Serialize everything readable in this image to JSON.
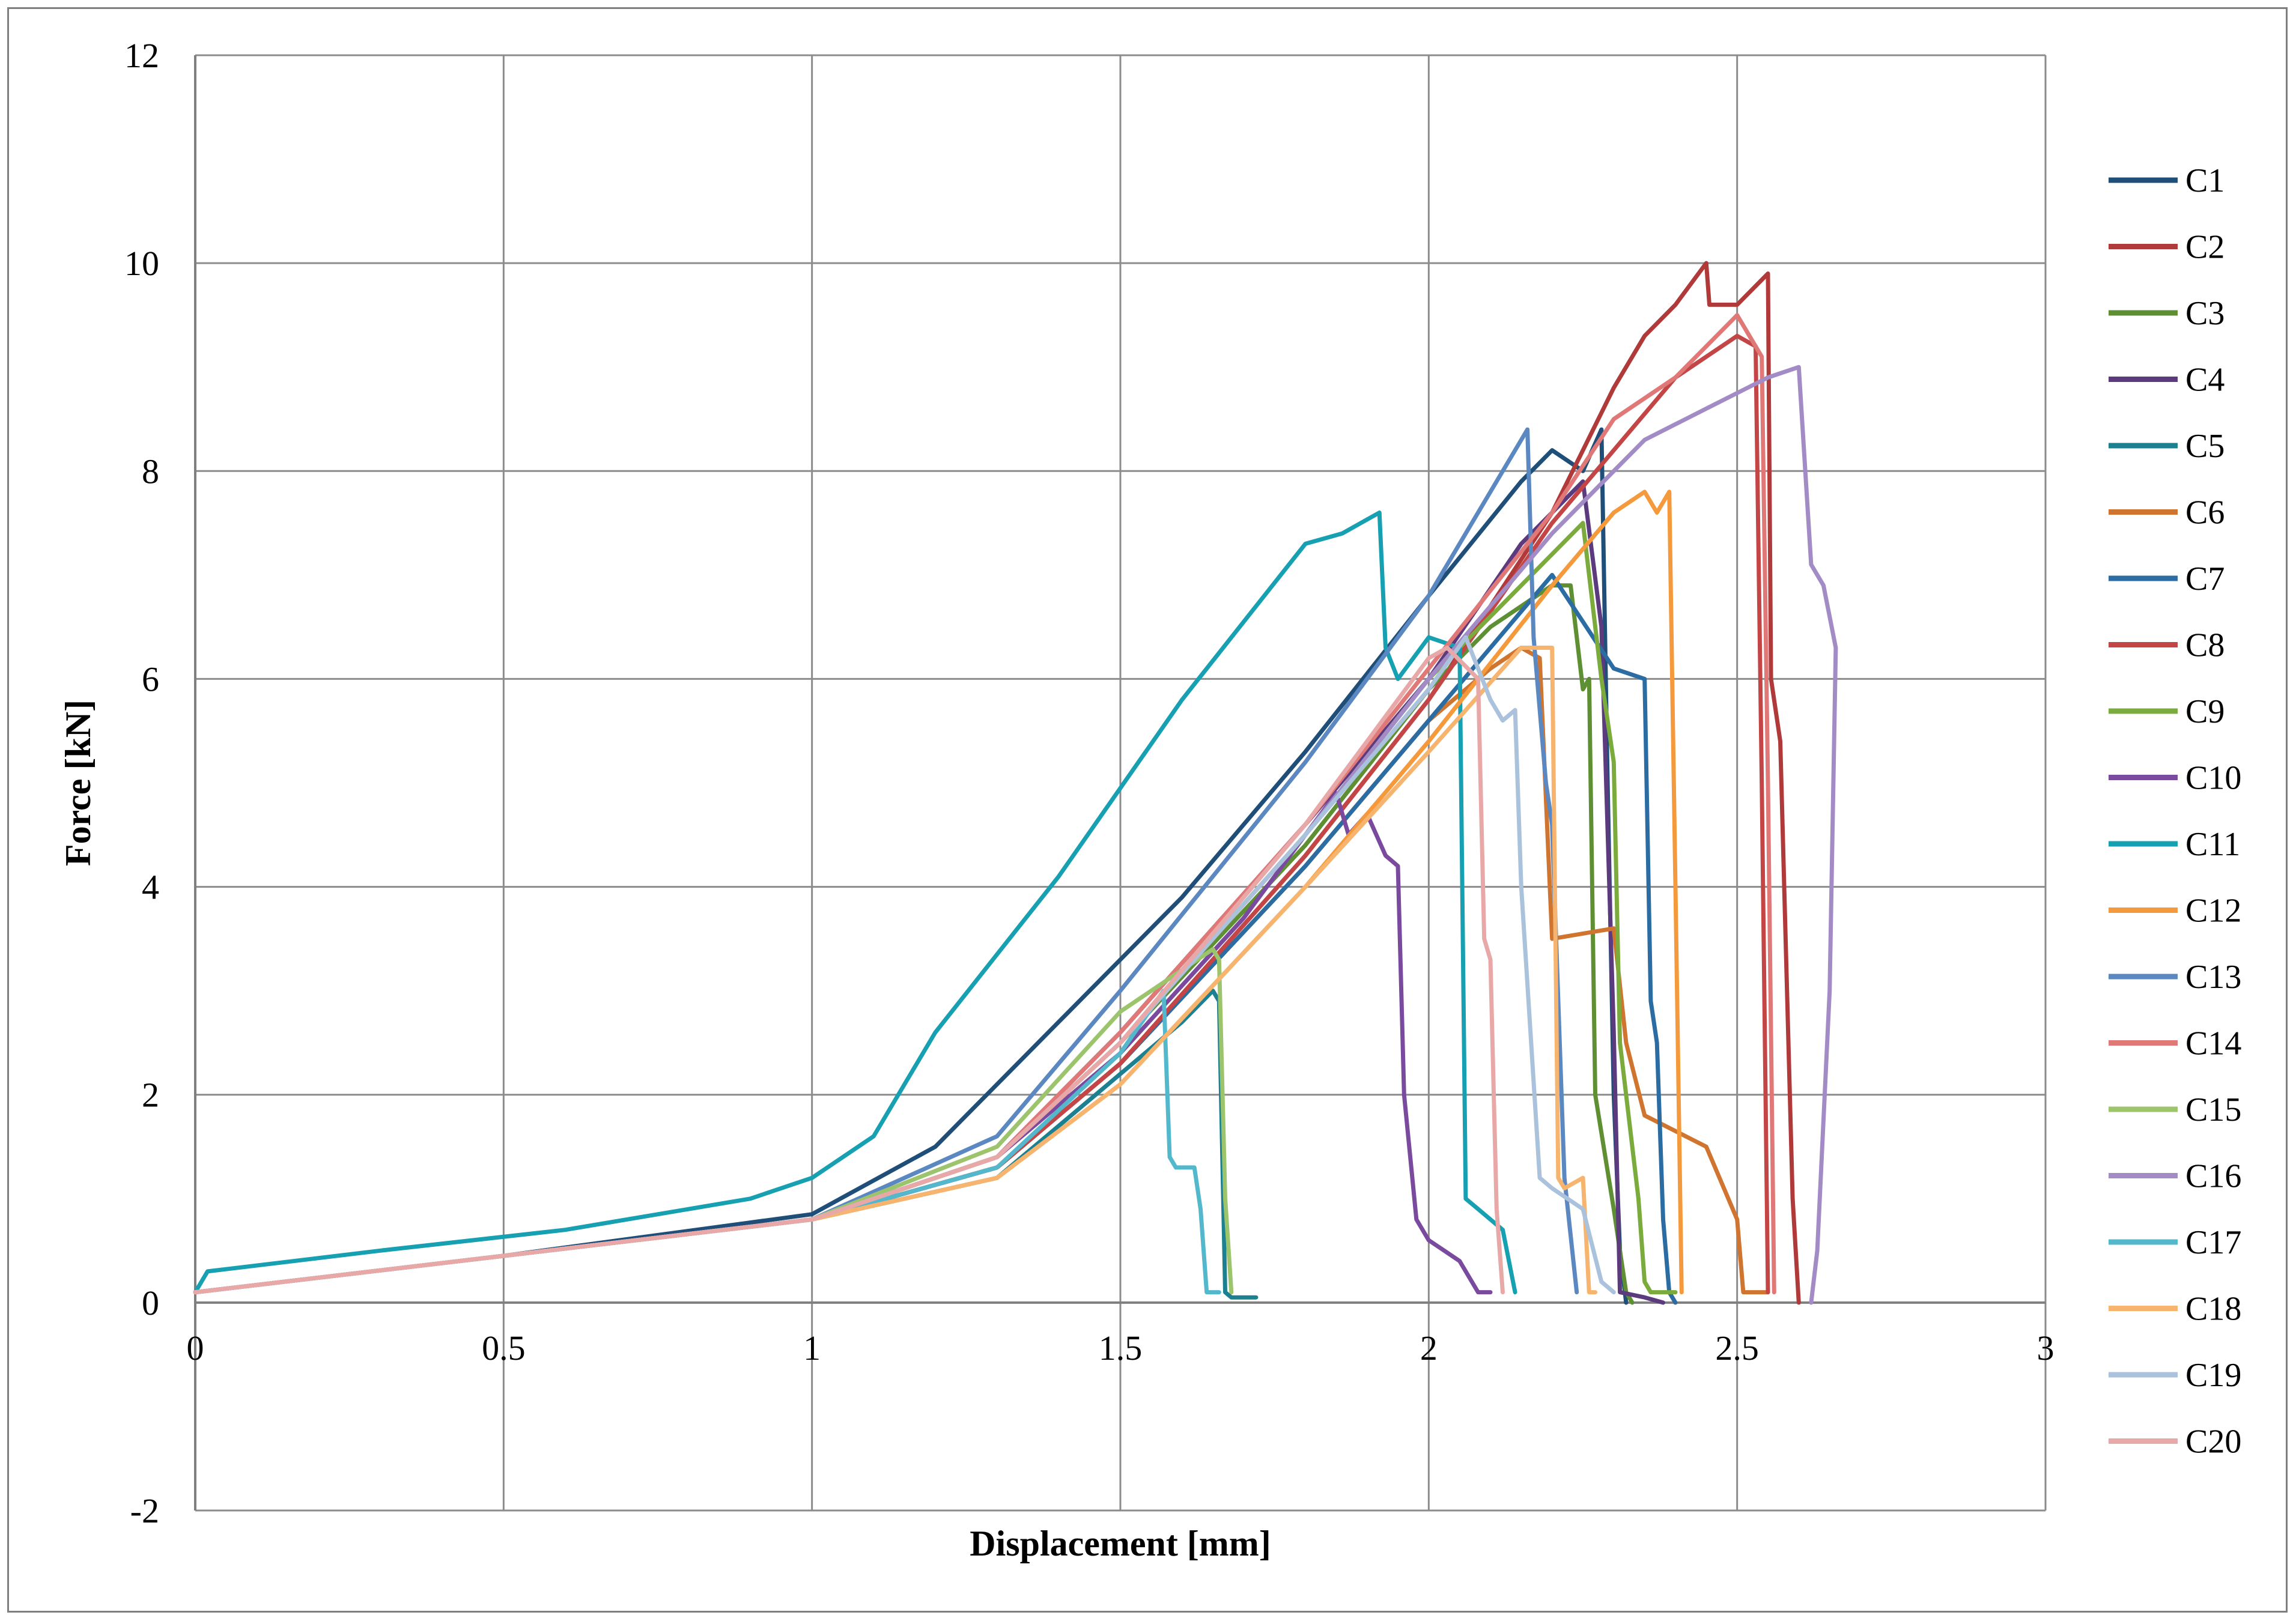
{
  "chart_data": {
    "type": "line",
    "xlabel": "Displacement [mm]",
    "ylabel": "Force [kN]",
    "xlim": [
      0,
      3
    ],
    "ylim": [
      -2,
      12
    ],
    "x_ticks": [
      0,
      0.5,
      1,
      1.5,
      2,
      2.5,
      3
    ],
    "x_tick_labels": [
      "0",
      "0.5",
      "1",
      "1.5",
      "2",
      "2.5",
      "3"
    ],
    "y_ticks": [
      -2,
      0,
      2,
      4,
      6,
      8,
      10,
      12
    ],
    "y_tick_labels": [
      "-2",
      "0",
      "2",
      "4",
      "6",
      "8",
      "10",
      "12"
    ],
    "grid": true,
    "legend_position": "right",
    "series": [
      {
        "name": "C1",
        "color": "#1f4e79",
        "x": [
          0,
          0.5,
          1,
          1.2,
          1.4,
          1.6,
          1.8,
          2.0,
          2.15,
          2.2,
          2.25,
          2.28,
          2.29,
          2.3,
          2.31,
          2.32
        ],
        "y": [
          0.1,
          0.45,
          0.85,
          1.5,
          2.7,
          3.9,
          5.3,
          6.8,
          7.9,
          8.2,
          8.0,
          8.4,
          5.0,
          2.0,
          0.5,
          0
        ]
      },
      {
        "name": "C2",
        "color": "#b03a3a",
        "x": [
          0,
          0.5,
          1,
          1.3,
          1.5,
          1.8,
          2.0,
          2.2,
          2.3,
          2.35,
          2.4,
          2.45,
          2.455,
          2.5,
          2.55,
          2.555,
          2.57,
          2.59,
          2.6
        ],
        "y": [
          0.1,
          0.45,
          0.8,
          1.3,
          2.3,
          4.3,
          5.8,
          7.6,
          8.8,
          9.3,
          9.6,
          10.0,
          9.6,
          9.6,
          9.9,
          6.0,
          5.4,
          1.0,
          0
        ]
      },
      {
        "name": "C3",
        "color": "#5e8f32",
        "x": [
          0,
          0.5,
          1,
          1.3,
          1.5,
          1.8,
          2.0,
          2.1,
          2.2,
          2.23,
          2.25,
          2.26,
          2.27,
          2.3,
          2.32,
          2.33
        ],
        "y": [
          0.1,
          0.45,
          0.8,
          1.4,
          2.5,
          4.4,
          5.9,
          6.5,
          6.9,
          6.9,
          5.9,
          6.0,
          2.0,
          0.9,
          0.1,
          0
        ]
      },
      {
        "name": "C4",
        "color": "#5b3a7e",
        "x": [
          0,
          0.5,
          1,
          1.3,
          1.5,
          1.8,
          2.0,
          2.15,
          2.25,
          2.28,
          2.3,
          2.31,
          2.35,
          2.38
        ],
        "y": [
          0.1,
          0.45,
          0.8,
          1.4,
          2.6,
          4.6,
          6.0,
          7.3,
          7.9,
          6.5,
          2.6,
          0.1,
          0.05,
          0
        ]
      },
      {
        "name": "C5",
        "color": "#1c8090",
        "x": [
          0,
          0.5,
          1,
          1.3,
          1.5,
          1.6,
          1.65,
          1.66,
          1.67,
          1.68,
          1.72
        ],
        "y": [
          0.1,
          0.45,
          0.8,
          1.2,
          2.2,
          2.7,
          3.0,
          2.9,
          0.1,
          0.05,
          0.05
        ]
      },
      {
        "name": "C6",
        "color": "#d07530",
        "x": [
          0,
          0.5,
          1,
          1.3,
          1.5,
          1.8,
          2.0,
          2.1,
          2.15,
          2.18,
          2.2,
          2.3,
          2.32,
          2.35,
          2.45,
          2.5,
          2.51,
          2.55
        ],
        "y": [
          0.1,
          0.45,
          0.8,
          1.3,
          2.3,
          4.2,
          5.6,
          6.1,
          6.3,
          6.2,
          3.5,
          3.6,
          2.5,
          1.8,
          1.5,
          0.8,
          0.1,
          0.1
        ]
      },
      {
        "name": "C7",
        "color": "#2b6ca3",
        "x": [
          0,
          0.5,
          1,
          1.3,
          1.5,
          1.8,
          2.0,
          2.2,
          2.3,
          2.35,
          2.36,
          2.37,
          2.38,
          2.39,
          2.4
        ],
        "y": [
          0.1,
          0.45,
          0.8,
          1.3,
          2.3,
          4.2,
          5.6,
          7.0,
          6.1,
          6.0,
          2.9,
          2.5,
          0.8,
          0.1,
          0
        ]
      },
      {
        "name": "C8",
        "color": "#c44545",
        "x": [
          0,
          0.5,
          1,
          1.3,
          1.5,
          1.8,
          2.0,
          2.2,
          2.4,
          2.5,
          2.53,
          2.54,
          2.55
        ],
        "y": [
          0.1,
          0.45,
          0.8,
          1.3,
          2.3,
          4.3,
          5.8,
          7.5,
          8.9,
          9.3,
          9.2,
          5.0,
          0.1
        ]
      },
      {
        "name": "C9",
        "color": "#7aab3c",
        "x": [
          0,
          0.5,
          1,
          1.3,
          1.5,
          1.8,
          2.0,
          2.1,
          2.2,
          2.25,
          2.28,
          2.3,
          2.31,
          2.34,
          2.35,
          2.36,
          2.4
        ],
        "y": [
          0.1,
          0.45,
          0.8,
          1.4,
          2.5,
          4.5,
          6.0,
          6.6,
          7.2,
          7.5,
          6.0,
          5.2,
          2.5,
          1.0,
          0.2,
          0.1,
          0.1
        ]
      },
      {
        "name": "C10",
        "color": "#7a4a9e",
        "x": [
          0,
          0.5,
          1,
          1.3,
          1.5,
          1.7,
          1.85,
          1.87,
          1.9,
          1.93,
          1.95,
          1.96,
          1.98,
          2.0,
          2.05,
          2.08,
          2.1
        ],
        "y": [
          0.1,
          0.45,
          0.8,
          1.4,
          2.4,
          3.7,
          4.9,
          4.5,
          4.7,
          4.3,
          4.2,
          2.0,
          0.8,
          0.6,
          0.4,
          0.1,
          0.1
        ]
      },
      {
        "name": "C11",
        "color": "#16a0b2",
        "x": [
          0,
          0.02,
          0.3,
          0.6,
          0.9,
          1.0,
          1.1,
          1.2,
          1.4,
          1.6,
          1.8,
          1.86,
          1.92,
          1.93,
          1.95,
          2.0,
          2.05,
          2.06,
          2.08,
          2.12,
          2.14
        ],
        "y": [
          0.1,
          0.3,
          0.5,
          0.7,
          1.0,
          1.2,
          1.6,
          2.6,
          4.1,
          5.8,
          7.3,
          7.4,
          7.6,
          6.3,
          6.0,
          6.4,
          6.3,
          1.0,
          0.9,
          0.7,
          0.1
        ]
      },
      {
        "name": "C12",
        "color": "#f59a3c",
        "x": [
          0,
          0.5,
          1,
          1.3,
          1.5,
          1.8,
          2.0,
          2.2,
          2.3,
          2.35,
          2.37,
          2.39,
          2.4,
          2.41
        ],
        "y": [
          0.1,
          0.45,
          0.8,
          1.2,
          2.1,
          4.0,
          5.4,
          6.9,
          7.6,
          7.8,
          7.6,
          7.8,
          4.0,
          0.1
        ]
      },
      {
        "name": "C13",
        "color": "#5b88c0",
        "x": [
          0,
          0.5,
          1,
          1.3,
          1.5,
          1.8,
          2.0,
          2.1,
          2.16,
          2.17,
          2.19,
          2.2,
          2.22,
          2.24
        ],
        "y": [
          0.1,
          0.45,
          0.8,
          1.6,
          3.0,
          5.2,
          6.8,
          7.8,
          8.4,
          6.4,
          5.0,
          4.6,
          1.2,
          0.1
        ]
      },
      {
        "name": "C14",
        "color": "#e07878",
        "x": [
          0,
          0.5,
          1,
          1.3,
          1.5,
          1.8,
          2.0,
          2.2,
          2.3,
          2.4,
          2.5,
          2.52,
          2.54,
          2.55,
          2.56
        ],
        "y": [
          0.1,
          0.45,
          0.8,
          1.4,
          2.6,
          4.6,
          6.1,
          7.6,
          8.5,
          8.9,
          9.5,
          9.3,
          9.1,
          5.0,
          0.1
        ]
      },
      {
        "name": "C15",
        "color": "#9cc46c",
        "x": [
          0,
          0.5,
          1,
          1.3,
          1.5,
          1.6,
          1.65,
          1.66,
          1.67,
          1.68
        ],
        "y": [
          0.1,
          0.45,
          0.8,
          1.5,
          2.8,
          3.2,
          3.4,
          3.3,
          1.0,
          0.1
        ]
      },
      {
        "name": "C16",
        "color": "#a38bc6",
        "x": [
          0,
          0.5,
          1,
          1.3,
          1.5,
          1.8,
          2.0,
          2.2,
          2.35,
          2.45,
          2.55,
          2.6,
          2.62,
          2.64,
          2.66,
          2.65,
          2.63,
          2.62
        ],
        "y": [
          0.1,
          0.45,
          0.8,
          1.4,
          2.5,
          4.5,
          6.0,
          7.4,
          8.3,
          8.6,
          8.9,
          9.0,
          7.1,
          6.9,
          6.3,
          3.0,
          0.5,
          0
        ]
      },
      {
        "name": "C17",
        "color": "#54b8cc",
        "x": [
          0,
          0.5,
          1,
          1.3,
          1.5,
          1.57,
          1.58,
          1.59,
          1.62,
          1.63,
          1.64,
          1.66
        ],
        "y": [
          0.1,
          0.45,
          0.8,
          1.3,
          2.4,
          3.0,
          1.4,
          1.3,
          1.3,
          0.9,
          0.1,
          0.1
        ]
      },
      {
        "name": "C18",
        "color": "#f7b46e",
        "x": [
          0,
          0.5,
          1,
          1.3,
          1.5,
          1.8,
          2.0,
          2.15,
          2.2,
          2.21,
          2.22,
          2.25,
          2.26,
          2.27
        ],
        "y": [
          0.1,
          0.45,
          0.8,
          1.2,
          2.1,
          4.0,
          5.3,
          6.3,
          6.3,
          1.2,
          1.1,
          1.2,
          0.1,
          0.1
        ]
      },
      {
        "name": "C19",
        "color": "#aac2dc",
        "x": [
          0,
          0.5,
          1,
          1.3,
          1.5,
          1.8,
          2.0,
          2.06,
          2.1,
          2.12,
          2.14,
          2.15,
          2.18,
          2.2,
          2.25,
          2.28,
          2.3
        ],
        "y": [
          0.1,
          0.45,
          0.8,
          1.4,
          2.5,
          4.5,
          5.9,
          6.4,
          5.8,
          5.6,
          5.7,
          4.0,
          1.2,
          1.1,
          0.9,
          0.2,
          0.1
        ]
      },
      {
        "name": "C20",
        "color": "#e9a8a8",
        "x": [
          0,
          0.5,
          1,
          1.3,
          1.5,
          1.8,
          1.95,
          2.0,
          2.03,
          2.08,
          2.09,
          2.1,
          2.11,
          2.12
        ],
        "y": [
          0.1,
          0.45,
          0.8,
          1.4,
          2.5,
          4.6,
          5.8,
          6.2,
          6.3,
          6.0,
          3.5,
          3.3,
          0.9,
          0.1
        ]
      }
    ]
  }
}
